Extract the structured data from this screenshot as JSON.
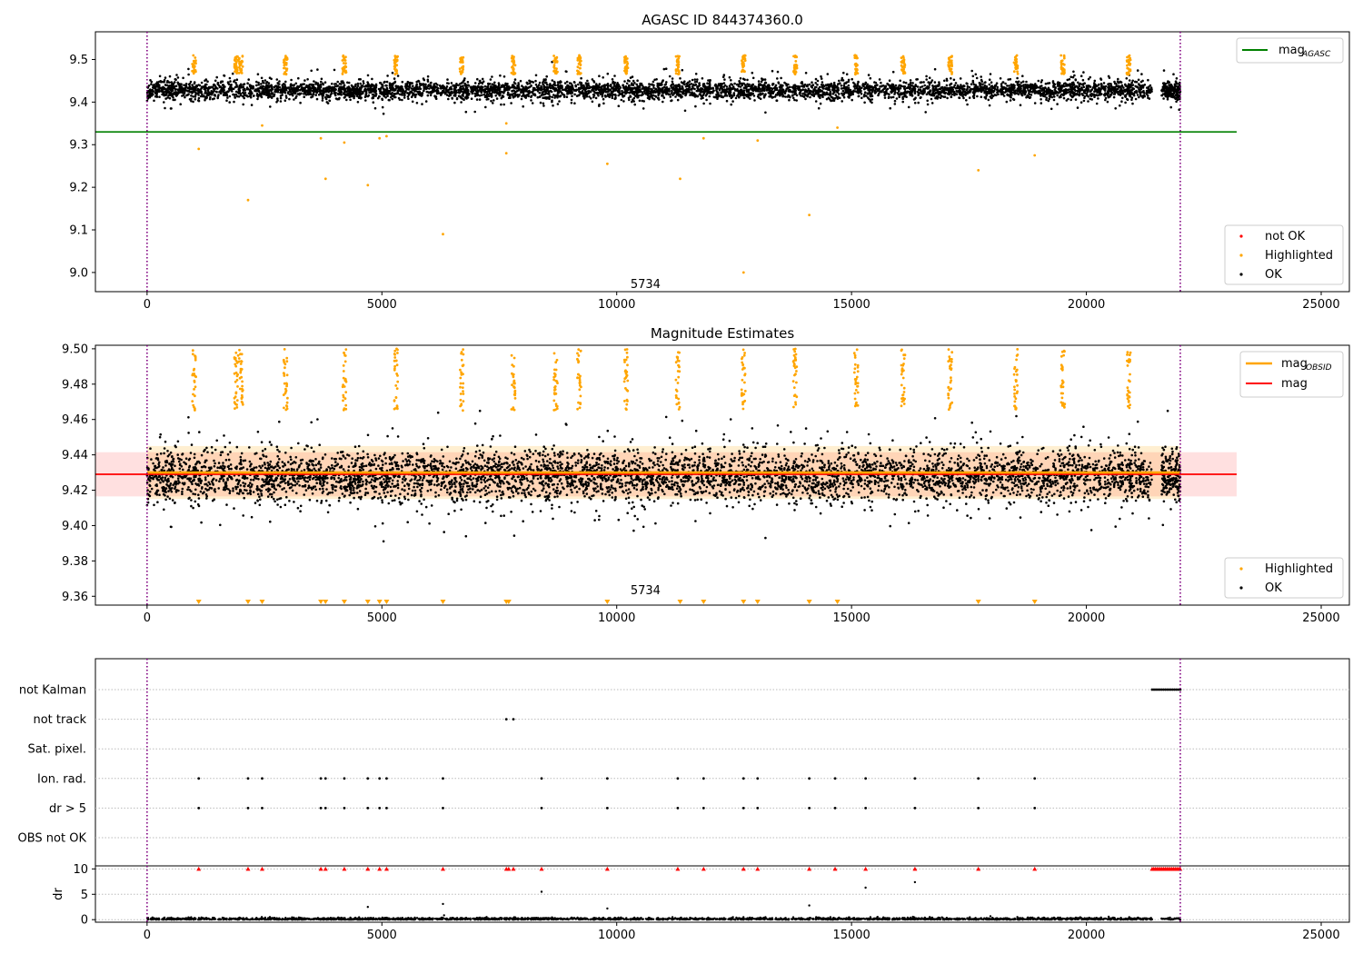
{
  "chart_data": [
    {
      "type": "scatter",
      "title": "AGASC ID 844374360.0",
      "xlim": [
        -1100,
        25600
      ],
      "ylim": [
        8.955,
        9.565
      ],
      "xticks": [
        0,
        5000,
        10000,
        15000,
        20000,
        25000
      ],
      "xticklabels": [
        "0",
        "5000",
        "10000",
        "15000",
        "20000",
        "25000"
      ],
      "yticks": [
        9.0,
        9.1,
        9.2,
        9.3,
        9.4,
        9.5
      ],
      "yticklabels": [
        "9.0",
        "9.1",
        "9.2",
        "9.3",
        "9.4",
        "9.5"
      ],
      "vlines": [
        0,
        22000
      ],
      "annotation": {
        "text": "5734",
        "x": 11000,
        "y": 8.97
      },
      "mag_agasc": 9.33,
      "mag_agasc_xrange": [
        -1100,
        23200
      ],
      "band": {
        "low": 9.41,
        "high": 9.45
      },
      "ok_span": [
        0,
        21400
      ],
      "ok_span_2": [
        21600,
        22000
      ],
      "ok_center": 9.428,
      "ok_spread": 0.018,
      "highlight_clusters": [
        1000,
        1900,
        2000,
        2950,
        4200,
        5300,
        6700,
        7800,
        8700,
        9200,
        10200,
        11300,
        12700,
        13800,
        15100,
        16100,
        17100,
        18500,
        19500,
        20900
      ],
      "highlight_outliers": [
        [
          1100,
          9.29
        ],
        [
          2150,
          9.17
        ],
        [
          2450,
          9.345
        ],
        [
          3700,
          9.315
        ],
        [
          3800,
          9.22
        ],
        [
          4200,
          9.305
        ],
        [
          4700,
          9.205
        ],
        [
          4950,
          9.315
        ],
        [
          5100,
          9.32
        ],
        [
          6300,
          9.09
        ],
        [
          7650,
          9.35
        ],
        [
          7650,
          9.28
        ],
        [
          9800,
          9.255
        ],
        [
          11350,
          9.22
        ],
        [
          11850,
          9.315
        ],
        [
          12700,
          9.0
        ],
        [
          13000,
          9.31
        ],
        [
          14100,
          9.135
        ],
        [
          14700,
          9.34
        ],
        [
          17700,
          9.24
        ],
        [
          18900,
          9.275
        ]
      ],
      "legend_markers": [
        {
          "label": "not OK",
          "color": "#ff0000"
        },
        {
          "label": "Highlighted",
          "color": "#ffa500"
        },
        {
          "label": "OK",
          "color": "#000000"
        }
      ],
      "legend_lines": [
        {
          "label": "mag",
          "sub": "AGASC",
          "color": "#008000"
        }
      ]
    },
    {
      "type": "scatter",
      "title": "Magnitude Estimates",
      "xlim": [
        -1100,
        25600
      ],
      "ylim": [
        9.355,
        9.502
      ],
      "xticks": [
        0,
        5000,
        10000,
        15000,
        20000,
        25000
      ],
      "xticklabels": [
        "0",
        "5000",
        "10000",
        "15000",
        "20000",
        "25000"
      ],
      "yticks": [
        9.36,
        9.38,
        9.4,
        9.42,
        9.44,
        9.46,
        9.48,
        9.5
      ],
      "yticklabels": [
        "9.36",
        "9.38",
        "9.40",
        "9.42",
        "9.44",
        "9.46",
        "9.48",
        "9.50"
      ],
      "vlines": [
        0,
        22000
      ],
      "annotation": {
        "text": "5734",
        "x": 11000,
        "y": 9.358
      },
      "mag": 9.429,
      "mag_obsid": 9.43,
      "mag_band": {
        "low": 9.4165,
        "high": 9.4415
      },
      "mag_band_xrange": [
        -1100,
        23200
      ],
      "ok_span": [
        0,
        21400
      ],
      "ok_span_2": [
        21600,
        22000
      ],
      "ok_center": 9.428,
      "ok_spread": 0.012,
      "highlight_clusters": [
        1000,
        1900,
        2000,
        2950,
        4200,
        5300,
        6700,
        7800,
        8700,
        9200,
        10200,
        11300,
        12700,
        13800,
        15100,
        16100,
        17100,
        18500,
        19500,
        20900
      ],
      "clipped_markers": [
        1100,
        2150,
        2450,
        3700,
        3800,
        4200,
        4700,
        4950,
        5100,
        6300,
        7650,
        7700,
        9800,
        11350,
        11850,
        12700,
        13000,
        14100,
        14700,
        17700,
        18900
      ],
      "legend_markers": [
        {
          "label": "Highlighted",
          "color": "#ffa500"
        },
        {
          "label": "OK",
          "color": "#000000"
        }
      ],
      "legend_lines": [
        {
          "label": "mag",
          "sub": "OBSID",
          "color": "#ffa500"
        },
        {
          "label": "mag",
          "sub": "",
          "color": "#ff0000"
        }
      ]
    },
    {
      "type": "scatter",
      "xlim": [
        -1100,
        25600
      ],
      "flag_categories": [
        "not Kalman",
        "not track",
        "Sat. pixel.",
        "Ion. rad.",
        "dr > 5",
        "OBS not OK"
      ],
      "flag_not_kalman": [
        21400,
        22000
      ],
      "flag_not_track": [
        7650,
        7800
      ],
      "flag_ion_rad": [
        1100,
        2150,
        2450,
        3700,
        3800,
        4200,
        4700,
        4950,
        5100,
        6300,
        8400,
        9800,
        11300,
        11850,
        12700,
        13000,
        14100,
        14650,
        15300,
        16350,
        17700,
        18900
      ],
      "flag_dr": [
        1100,
        2150,
        2450,
        3700,
        3800,
        4200,
        4700,
        4950,
        5100,
        6300,
        8400,
        9800,
        11300,
        11850,
        12700,
        13000,
        14100,
        14650,
        15300,
        16350,
        17700,
        18900
      ],
      "dr_ylabel": "dr",
      "dr_ylim": [
        -0.5,
        10.6
      ],
      "dr_yticks": [
        0,
        5,
        10
      ],
      "dr_yticklabels": [
        "0",
        "5",
        "10"
      ],
      "dr_xticks": [
        0,
        5000,
        10000,
        15000,
        20000,
        25000
      ],
      "dr_xticklabels": [
        "0",
        "5000",
        "10000",
        "15000",
        "20000",
        "25000"
      ],
      "dr_clipped": [
        1100,
        2150,
        2450,
        3700,
        3800,
        4200,
        4700,
        4950,
        5100,
        6300,
        7650,
        7700,
        7800,
        8400,
        9800,
        11300,
        11850,
        12700,
        13000,
        14100,
        14650,
        15300,
        16350,
        17700,
        18900
      ],
      "dr_clipped_run": [
        21400,
        22000
      ],
      "dr_outliers": [
        [
          6300,
          3.1
        ],
        [
          8400,
          5.5
        ],
        [
          15300,
          6.3
        ],
        [
          16350,
          7.4
        ],
        [
          4700,
          2.5
        ],
        [
          9800,
          2.2
        ],
        [
          14100,
          2.8
        ]
      ],
      "dr_span": [
        0,
        21400
      ],
      "vlines": [
        0,
        22000
      ]
    }
  ]
}
